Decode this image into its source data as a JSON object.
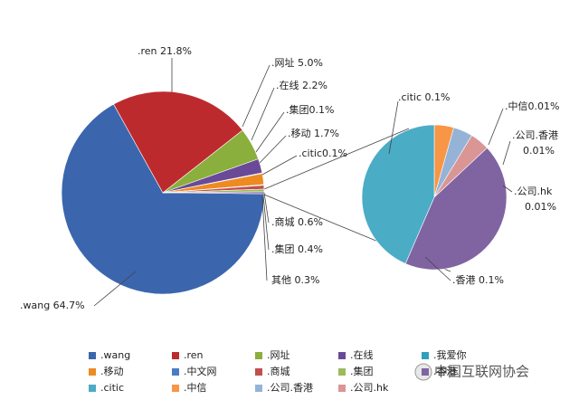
{
  "chart_data": {
    "type": "pie-of-pie",
    "main": [
      {
        "label": [
          ".wang 64.7%"
        ],
        "value": 64.7,
        "color": "#3b66ad"
      },
      {
        "label": [
          ".ren 21.8%"
        ],
        "value": 21.8,
        "color": "#bd2a2e"
      },
      {
        "label": [
          ".网址 5.0%"
        ],
        "value": 5.0,
        "color": "#8aaf3c"
      },
      {
        "label": [
          ".在线 2.2%"
        ],
        "value": 2.2,
        "color": "#6a4a98"
      },
      {
        "label": [
          ".集团0.1%"
        ],
        "value": 0.1,
        "color": "#2f9fbd"
      },
      {
        "label": [
          ".移动 1.7%"
        ],
        "value": 1.7,
        "color": "#ee8a22"
      },
      {
        "label": [
          ".citic0.1%"
        ],
        "value": 0.1,
        "color": "#4a7cc6"
      },
      {
        "label": [
          ".商城 0.6%"
        ],
        "value": 0.6,
        "color": "#c0504d"
      },
      {
        "label": [
          ".集团 0.4%"
        ],
        "value": 0.4,
        "color": "#9bbb59"
      },
      {
        "label": [
          "其他 0.3%"
        ],
        "value": 0.3,
        "color": "#8064a2"
      }
    ],
    "secondary": [
      {
        "label": [
          ".中信0.01%"
        ],
        "value": 0.01,
        "color": "#f79646"
      },
      {
        "label": [
          ".公司.香港",
          "0.01%"
        ],
        "value": 0.01,
        "color": "#95b3d7"
      },
      {
        "label": [
          ".公司.hk",
          "0.01%"
        ],
        "value": 0.01,
        "color": "#d99694"
      },
      {
        "label": [
          ".香港 0.1%"
        ],
        "value": 0.1,
        "color": "#8064a2"
      },
      {
        "label": [
          ".citic 0.1%"
        ],
        "value": 0.1,
        "color": "#4bacc6"
      }
    ],
    "legend": [
      {
        "name": ".wang",
        "color": "#3b66ad"
      },
      {
        "name": ".ren",
        "color": "#bd2a2e"
      },
      {
        "name": ".网址",
        "color": "#8aaf3c"
      },
      {
        "name": ".在线",
        "color": "#6a4a98"
      },
      {
        "name": ".我爱你",
        "color": "#2f9fbd"
      },
      {
        "name": ".移动",
        "color": "#ee8a22"
      },
      {
        "name": ".中文网",
        "color": "#4a7cc6"
      },
      {
        "name": ".商城",
        "color": "#c0504d"
      },
      {
        "name": ".集团",
        "color": "#9bbb59"
      },
      {
        "name": ".香港",
        "color": "#8064a2"
      },
      {
        "name": ".citic",
        "color": "#4bacc6"
      },
      {
        "name": ".中信",
        "color": "#f79646"
      },
      {
        "name": ".公司.香港",
        "color": "#95b3d7"
      },
      {
        "name": ".公司.hk",
        "color": "#d99694"
      }
    ],
    "watermark": "中国互联网协会"
  }
}
